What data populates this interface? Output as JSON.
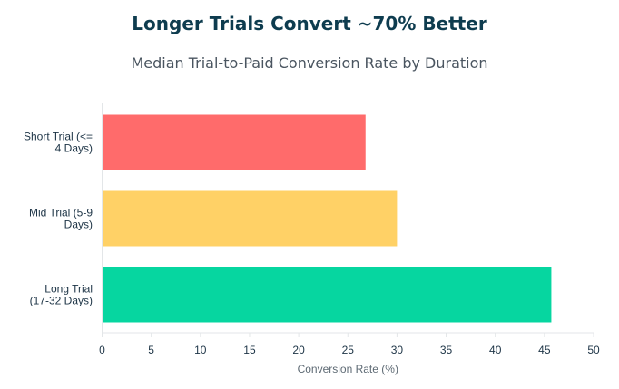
{
  "chart_data": {
    "type": "bar",
    "orientation": "horizontal",
    "title": "Longer Trials Convert ~70% Better",
    "subtitle": "Median Trial-to-Paid Conversion Rate by Duration",
    "xlabel": "Conversion Rate (%)",
    "ylabel": "",
    "categories": [
      [
        "Short Trial (<=",
        "4 Days)"
      ],
      [
        "Mid Trial (5-9",
        "Days)"
      ],
      [
        "Long Trial",
        "(17-32 Days)"
      ]
    ],
    "values": [
      26.8,
      30.0,
      45.7
    ],
    "colors": [
      "#ff6b6b",
      "#ffd166",
      "#06d6a0"
    ],
    "xlim": [
      0,
      50
    ],
    "xticks": [
      0,
      5,
      10,
      15,
      20,
      25,
      30,
      35,
      40,
      45,
      50
    ],
    "grid": false,
    "legend": "none"
  }
}
